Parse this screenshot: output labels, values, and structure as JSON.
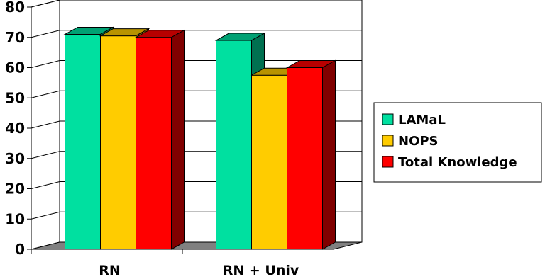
{
  "chart_data": {
    "type": "bar",
    "categories": [
      "RN",
      "RN + Univ"
    ],
    "series": [
      {
        "name": "LAMaL",
        "values": [
          71,
          69
        ],
        "color": "#00E0A0"
      },
      {
        "name": "NOPS",
        "values": [
          70.5,
          57.5
        ],
        "color": "#FFCC00"
      },
      {
        "name": "Total Knowledge",
        "values": [
          70,
          60
        ],
        "color": "#FF0000"
      }
    ],
    "yticks": [
      "0",
      "10",
      "20",
      "30",
      "40",
      "50",
      "60",
      "70",
      "80"
    ],
    "ylim": [
      0,
      80
    ],
    "grid": true,
    "legend": "right",
    "title": "",
    "xlabel": "",
    "ylabel": ""
  }
}
